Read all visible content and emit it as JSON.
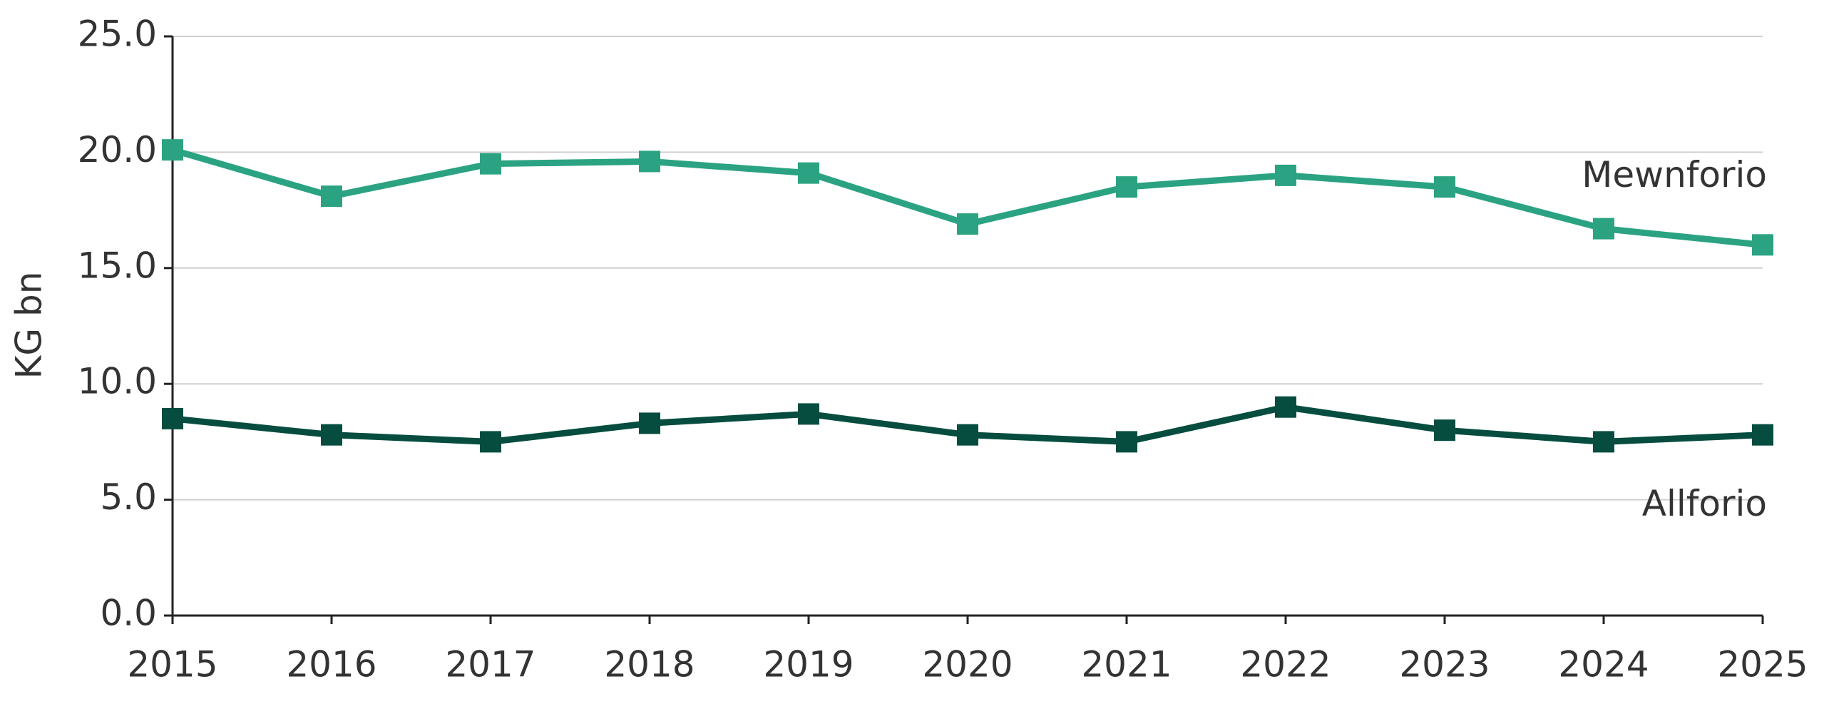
{
  "chart_data": {
    "type": "line",
    "y_label": "KG bn",
    "categories": [
      "2015",
      "2016",
      "2017",
      "2018",
      "2019",
      "2020",
      "2021",
      "2022",
      "2023",
      "2024",
      "2025"
    ],
    "series": [
      {
        "name": "Mewnforio",
        "color": "#2ba382",
        "values": [
          20.1,
          18.1,
          19.5,
          19.6,
          19.1,
          16.9,
          18.5,
          19.0,
          18.5,
          16.7,
          16.0
        ]
      },
      {
        "name": "Allforio",
        "color": "#064d3f",
        "values": [
          8.5,
          7.8,
          7.5,
          8.3,
          8.7,
          7.8,
          7.5,
          9.0,
          8.0,
          7.5,
          7.8
        ]
      }
    ],
    "ylim": [
      0,
      25
    ],
    "yticks": [
      {
        "value": 0,
        "label": "0.0"
      },
      {
        "value": 5,
        "label": "5.0"
      },
      {
        "value": 10,
        "label": "10.0"
      },
      {
        "value": 15,
        "label": "15.0"
      },
      {
        "value": 20,
        "label": "20.0"
      },
      {
        "value": 25,
        "label": "25.0"
      }
    ],
    "grid": true
  }
}
